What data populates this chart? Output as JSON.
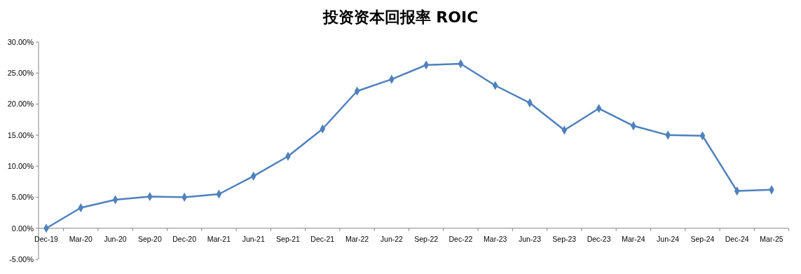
{
  "chart_data": {
    "type": "line",
    "title": "投资资本回报率 ROIC",
    "categories": [
      "Dec-19",
      "Mar-20",
      "Jun-20",
      "Sep-20",
      "Dec-20",
      "Mar-21",
      "Jun-21",
      "Sep-21",
      "Dec-21",
      "Mar-22",
      "Jun-22",
      "Sep-22",
      "Dec-22",
      "Mar-23",
      "Jun-23",
      "Sep-23",
      "Dec-23",
      "Mar-24",
      "Jun-24",
      "Sep-24",
      "Dec-24",
      "Mar-25"
    ],
    "series": [
      {
        "color": "#4f81bd",
        "values": [
          0,
          3.3,
          4.6,
          5.1,
          5.0,
          5.5,
          8.4,
          11.6,
          16.0,
          22.1,
          24.0,
          26.3,
          26.5,
          23.0,
          20.2,
          15.8,
          19.3,
          16.5,
          15.0,
          14.9,
          6.0,
          6.2
        ]
      }
    ],
    "ylim": [
      -5,
      30
    ],
    "yticks": [
      {
        "value": -5,
        "label": "-5.00%"
      },
      {
        "value": 0,
        "label": "0.00%"
      },
      {
        "value": 5,
        "label": "5.00%"
      },
      {
        "value": 10,
        "label": "10.00%"
      },
      {
        "value": 15,
        "label": "15.00%"
      },
      {
        "value": 20,
        "label": "20.00%"
      },
      {
        "value": 25,
        "label": "25.00%"
      },
      {
        "value": 30,
        "label": "30.00%"
      }
    ],
    "grid": false,
    "marker": "diamond",
    "line_style": "solid"
  }
}
